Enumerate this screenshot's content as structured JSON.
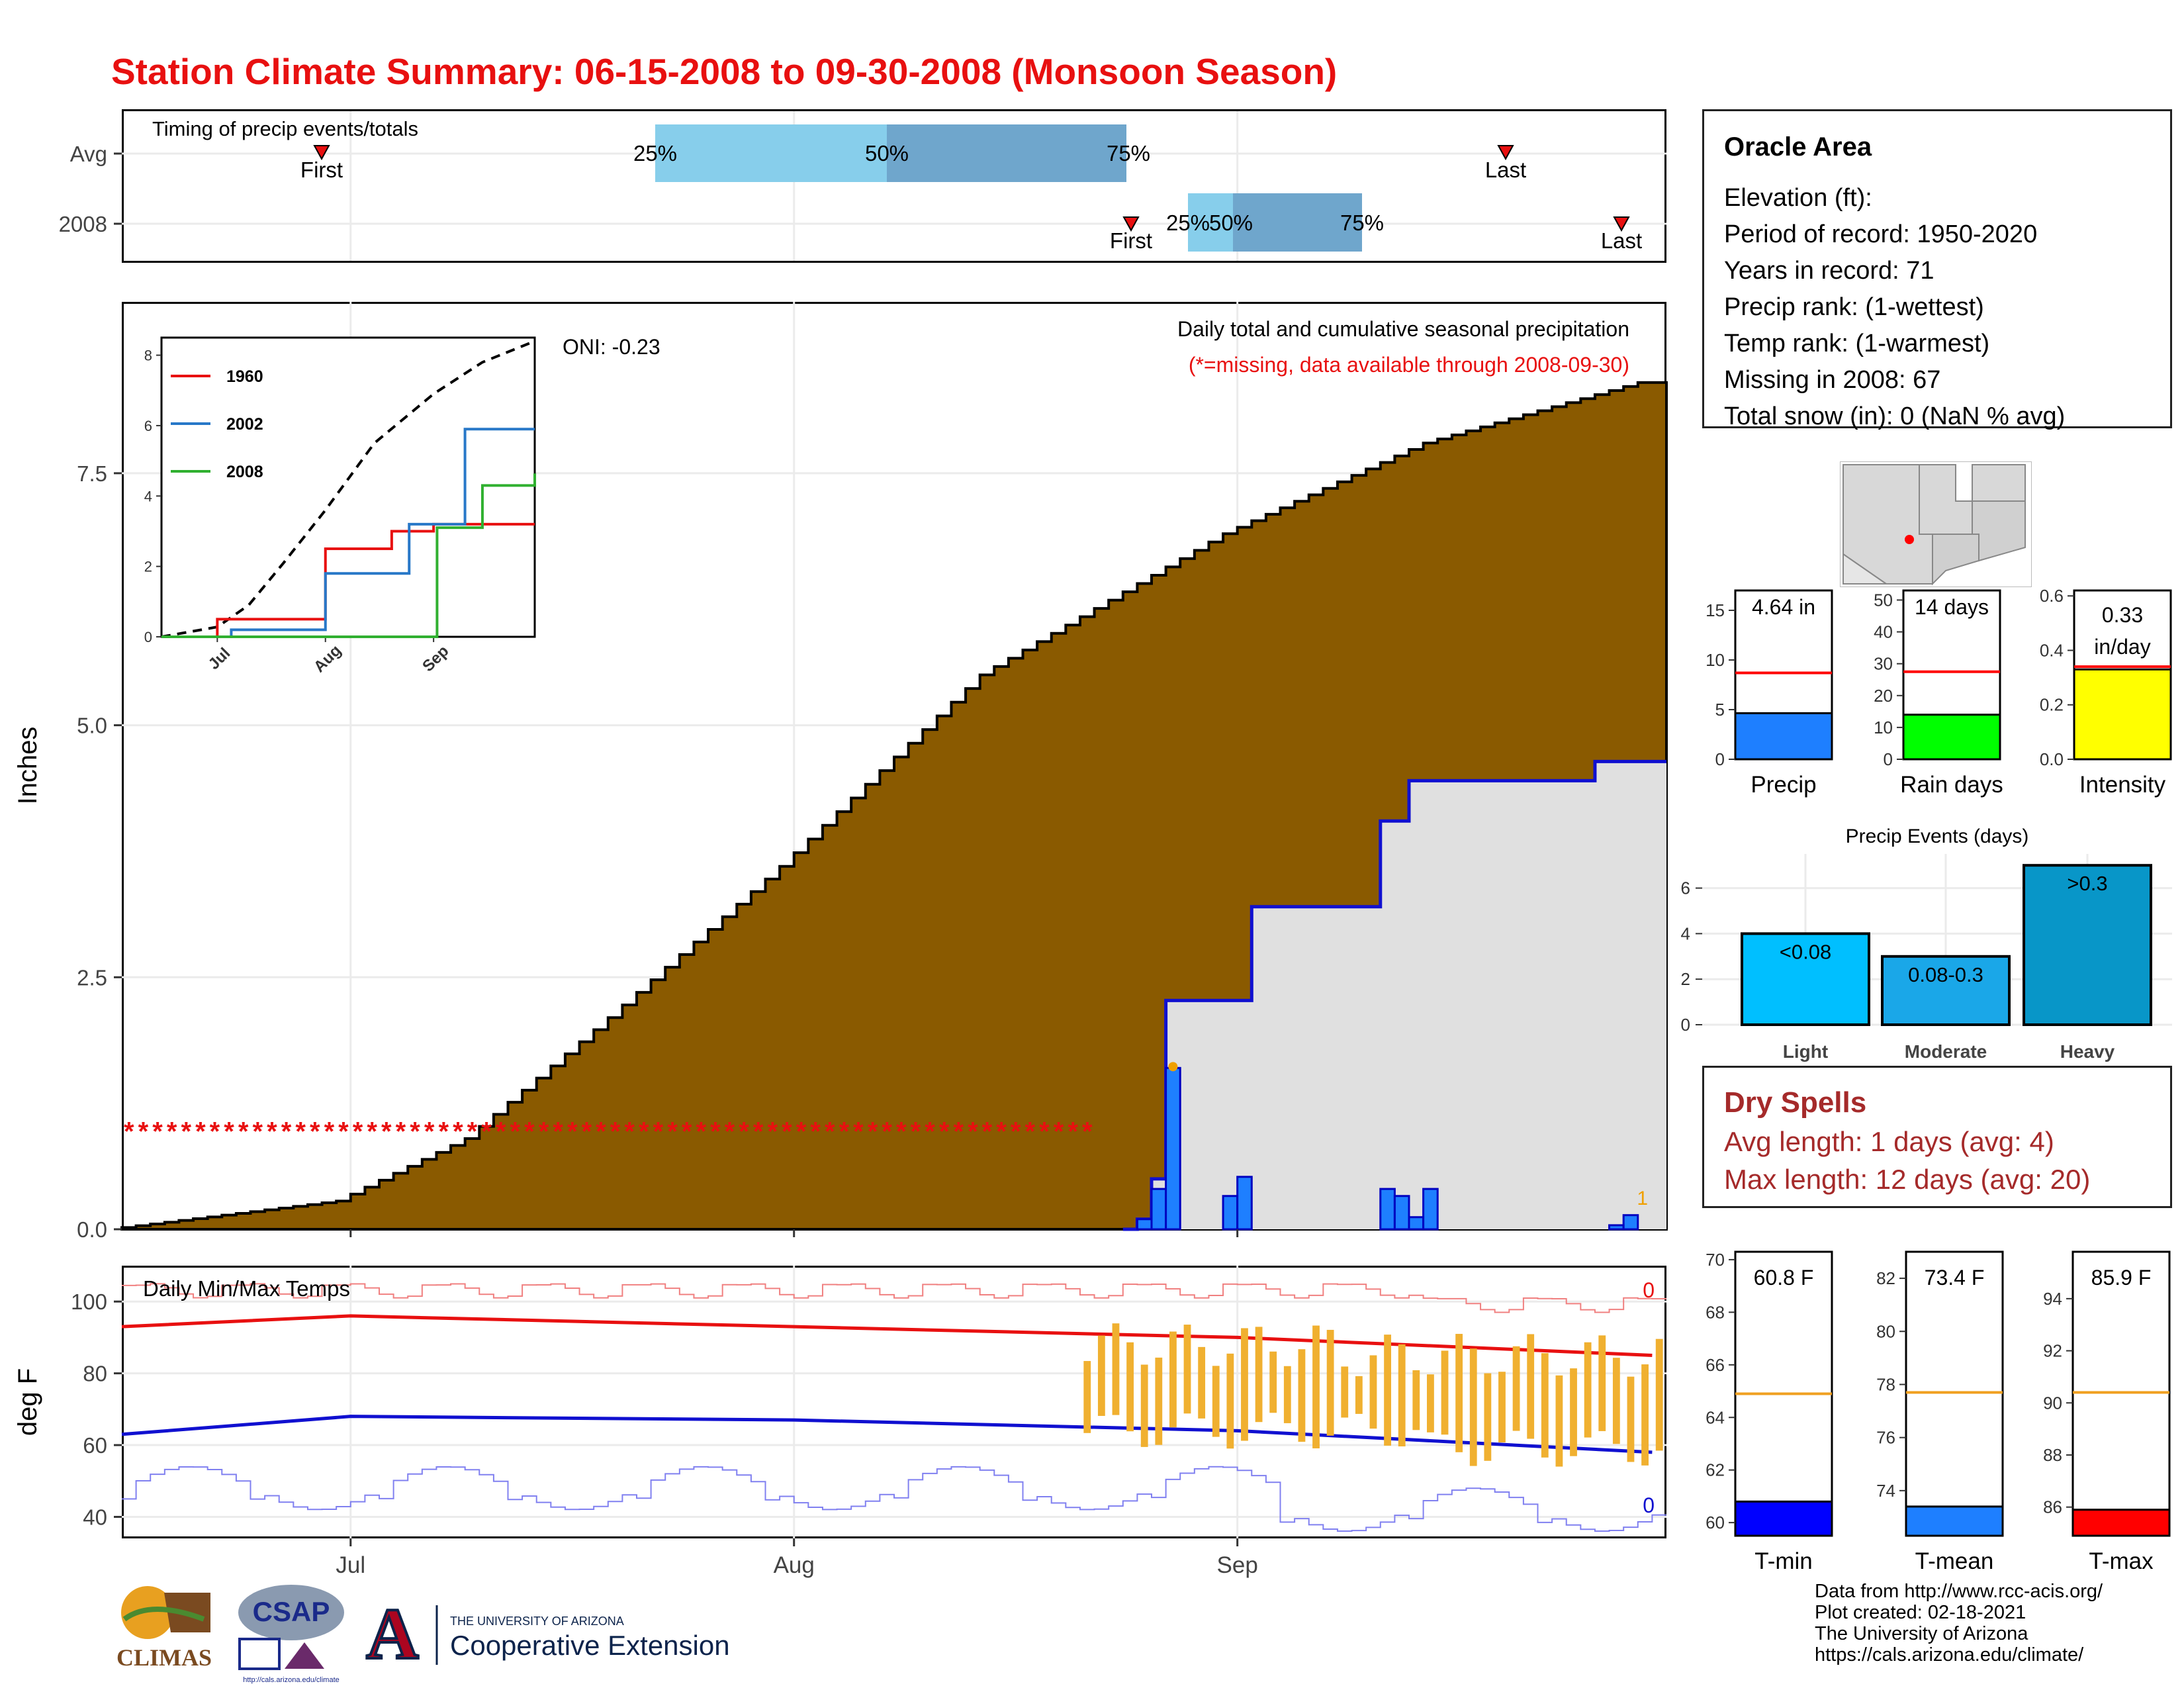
{
  "title": "Station Climate Summary: 06-15-2008 to 09-30-2008 (Monsoon Season)",
  "colors": {
    "title": "#e81010",
    "cumulative_avg_fill": "#8a5a00",
    "cumulative_2008_fill": "#e0e0e0",
    "cumulative_2008_line": "#1010d0",
    "daily_bar": "#1e7fff",
    "missing_marker": "#e81010",
    "tmax_avg": "#e81010",
    "tmin_avg": "#1010d0",
    "daily_temp_bar": "#f0b030",
    "iqr_outer": "#87ceeb",
    "iqr_inner": "#6fa6cc"
  },
  "timing": {
    "label": "Timing of precip events/totals",
    "rows": [
      "Avg",
      "2008"
    ],
    "avg": {
      "first_label": "First",
      "last_label": "Last",
      "p25": "25%",
      "p50": "50%",
      "p75": "75%"
    },
    "y2008": {
      "first_label": "First",
      "last_label": "Last",
      "p25": "25%",
      "p50": "50%",
      "p75": "75%"
    }
  },
  "main": {
    "ylabel": "Inches",
    "oni": "ONI: -0.23",
    "subtitle": "Daily total and cumulative seasonal precipitation",
    "missing_note": "(*=missing, data available through 2008-09-30)",
    "count_label": "1",
    "yticks": [
      "0.0",
      "2.5",
      "5.0",
      "7.5"
    ],
    "months": [
      "Jul",
      "Aug",
      "Sep"
    ]
  },
  "inset": {
    "yticks": [
      "0",
      "2",
      "4",
      "6",
      "8"
    ],
    "months": [
      "Jul",
      "Aug",
      "Sep"
    ],
    "legend": [
      {
        "name": "1960",
        "color": "#e81010"
      },
      {
        "name": "2002",
        "color": "#2878c8"
      },
      {
        "name": "2008",
        "color": "#30b030"
      }
    ]
  },
  "temps": {
    "label": "Daily Min/Max Temps",
    "ylabel": "deg F",
    "yticks": [
      "40",
      "60",
      "80",
      "100"
    ],
    "months": [
      "Jul",
      "Aug",
      "Sep"
    ],
    "max_count": "0",
    "min_count": "0"
  },
  "station": {
    "name": "Oracle Area",
    "lines": [
      "Elevation (ft):",
      "Period of record: 1950-2020",
      "Years in record: 71",
      "Precip rank:  (1-wettest)",
      "Temp rank:  (1-warmest)",
      "Missing in 2008: 67",
      "Total snow (in): 0 (NaN % avg)"
    ]
  },
  "mini_bars": [
    {
      "label": "Precip",
      "value_text": "4.64 in",
      "value": 4.64,
      "avg": 8.7,
      "ymax": 17,
      "ticks": [
        0,
        5,
        10,
        15
      ],
      "color": "#1e7fff"
    },
    {
      "label": "Rain days",
      "value_text": "14 days",
      "value": 14,
      "avg": 27.5,
      "ymax": 53,
      "ticks": [
        0,
        10,
        20,
        30,
        40,
        50
      ],
      "color": "#00ff00"
    },
    {
      "label": "Intensity",
      "value_text": "0.33",
      "value_text2": "in/day",
      "value": 0.33,
      "avg": 0.34,
      "ymax": 0.62,
      "ticks": [
        "0.0",
        "0.2",
        "0.4",
        "0.6"
      ],
      "color": "#ffff00"
    }
  ],
  "events": {
    "title": "Precip Events (days)",
    "categories": [
      "Light",
      "Moderate",
      "Heavy"
    ],
    "bar_labels": [
      "<0.08",
      "0.08-0.3",
      ">0.3"
    ],
    "values": [
      4,
      3,
      7
    ],
    "colors": [
      "#00bfff",
      "#1aa7e8",
      "#0896c8"
    ],
    "yticks": [
      "0",
      "2",
      "4",
      "6"
    ]
  },
  "dry_spells": {
    "title": "Dry Spells",
    "avg_line": "Avg length: 1 days (avg: 4)",
    "max_line": "Max length: 12 days (avg: 20)"
  },
  "temp_bars": [
    {
      "label": "T-min",
      "value_text": "60.8 F",
      "value": 60.8,
      "avg": 64.9,
      "ymin": 59.5,
      "ymax": 70.3,
      "ticks": [
        60,
        62,
        64,
        66,
        68,
        70
      ],
      "color": "#0000ff"
    },
    {
      "label": "T-mean",
      "value_text": "73.4 F",
      "value": 73.4,
      "avg": 77.7,
      "ymin": 72.3,
      "ymax": 83,
      "ticks": [
        74,
        76,
        78,
        80,
        82
      ],
      "color": "#1e7fff"
    },
    {
      "label": "T-max",
      "value_text": "85.9 F",
      "value": 85.9,
      "avg": 90.4,
      "ymin": 84.9,
      "ymax": 95.8,
      "ticks": [
        86,
        88,
        90,
        92,
        94
      ],
      "color": "#ff0000"
    }
  ],
  "footer": {
    "lines": [
      "Data from http://www.rcc-acis.org/",
      "Plot created: 02-18-2021",
      "The University of Arizona",
      "https://cals.arizona.edu/climate/"
    ],
    "logo_climas": "CLIMAS",
    "logo_csap": "CSAP",
    "logo_csap_url": "http://cals.arizona.edu/climate",
    "logo_ua_top": "THE UNIVERSITY OF ARIZONA",
    "logo_ua_bottom": "Cooperative Extension"
  },
  "chart_data": [
    {
      "type": "area",
      "title": "Daily total and cumulative seasonal precipitation",
      "ylabel": "Inches",
      "ylim": [
        0,
        9.2
      ],
      "x_range": [
        "2008-06-15",
        "2008-09-30"
      ],
      "series": [
        {
          "name": "average cumulative",
          "x": [
            "2008-06-15",
            "2008-07-01",
            "2008-07-10",
            "2008-07-20",
            "2008-08-01",
            "2008-08-15",
            "2008-09-01",
            "2008-09-15",
            "2008-09-30"
          ],
          "values": [
            0.0,
            0.28,
            0.9,
            2.1,
            3.6,
            5.5,
            6.9,
            7.8,
            8.4
          ]
        },
        {
          "name": "2008 cumulative",
          "x": [
            "2008-08-24",
            "2008-08-25",
            "2008-08-26",
            "2008-08-27",
            "2008-09-01",
            "2008-09-02",
            "2008-09-08",
            "2008-09-11",
            "2008-09-13",
            "2008-09-26",
            "2008-09-30"
          ],
          "values": [
            0.0,
            0.1,
            0.5,
            2.27,
            2.27,
            3.2,
            3.2,
            4.05,
            4.45,
            4.64,
            4.64
          ]
        },
        {
          "name": "2008 daily",
          "x": [
            "2008-08-25",
            "2008-08-26",
            "2008-08-27",
            "2008-08-31",
            "2008-09-01",
            "2008-09-11",
            "2008-09-12",
            "2008-09-13",
            "2008-09-14",
            "2008-09-27",
            "2008-09-28"
          ],
          "values": [
            0.1,
            0.4,
            1.6,
            0.33,
            0.52,
            0.4,
            0.33,
            0.12,
            0.4,
            0.04,
            0.14
          ]
        }
      ],
      "missing_through": "2008-08-21"
    },
    {
      "type": "line",
      "title": "",
      "ylim": [
        0,
        8.5
      ],
      "series": [
        {
          "name": "1960",
          "x": [
            "2008-06-15",
            "2008-07-01",
            "2008-08-01",
            "2008-08-20",
            "2008-09-01",
            "2008-09-30"
          ],
          "values": [
            0,
            0.5,
            2.5,
            3.0,
            3.2,
            3.2
          ]
        },
        {
          "name": "2002",
          "x": [
            "2008-06-15",
            "2008-07-05",
            "2008-08-01",
            "2008-08-25",
            "2008-09-10",
            "2008-09-30"
          ],
          "values": [
            0,
            0.2,
            1.8,
            3.2,
            5.9,
            5.9
          ]
        },
        {
          "name": "2008",
          "x": [
            "2008-06-15",
            "2008-08-26",
            "2008-09-02",
            "2008-09-15",
            "2008-09-30"
          ],
          "values": [
            0,
            0,
            3.1,
            4.3,
            4.64
          ]
        }
      ]
    },
    {
      "type": "line",
      "title": "Daily Min/Max Temps",
      "ylabel": "deg F",
      "ylim": [
        34,
        110
      ],
      "series": [
        {
          "name": "avg max",
          "x": [
            "2008-06-15",
            "2008-07-01",
            "2008-08-01",
            "2008-09-01",
            "2008-09-30"
          ],
          "values": [
            93,
            96,
            93,
            90,
            85
          ]
        },
        {
          "name": "avg min",
          "x": [
            "2008-06-15",
            "2008-07-01",
            "2008-08-01",
            "2008-09-01",
            "2008-09-30"
          ],
          "values": [
            63,
            68,
            67,
            64,
            58
          ]
        }
      ]
    }
  ]
}
